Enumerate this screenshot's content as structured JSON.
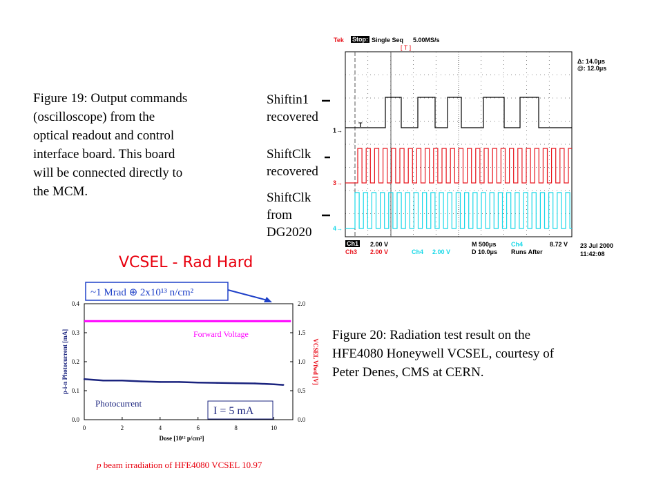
{
  "fig19": {
    "caption_lines": [
      "Figure 19: Output commands",
      "(oscilloscope) from the",
      "optical readout and control",
      "interface board. This board",
      "will be  connected directly to",
      "the MCM."
    ]
  },
  "signals": {
    "shiftin1": [
      "Shiftin1",
      "recovered"
    ],
    "shiftclk_rec": [
      "ShiftClk",
      "recovered"
    ],
    "shiftclk_dg": [
      "ShiftClk",
      "from",
      "DG2020"
    ]
  },
  "scope": {
    "brand": "Tek",
    "status": "Stop:",
    "mode": "Single Seq",
    "rate": "5.00MS/s",
    "delta": "Δ: 14.0μs",
    "at": "@: 12.0μs",
    "ch1": "Ch1",
    "ch1_scale": "2.00 V",
    "ch3": "Ch3",
    "ch3_scale": "2.00 V",
    "ch4": "Ch4",
    "ch4_scale": "2.00 V",
    "timebase": "M  500μs",
    "trig_ch": "Ch4",
    "trig_level": "8.72 V",
    "delay": "D  10.0μs",
    "runs": "Runs After",
    "date": "23 Jul 2000",
    "time": "11:42:08",
    "marker1": "1→",
    "marker3": "3→",
    "marker4": "4→",
    "trigger_marker": "T",
    "bracket": "[   T                              ]",
    "colors": {
      "ch1": "#000000",
      "ch3": "#e8141c",
      "ch4": "#18d8e8"
    }
  },
  "vcsel": {
    "title": "VCSEL - Rad Hard",
    "box_label": "~1 Mrad ⊕ 2x10¹³ n/cm²",
    "forward_voltage": "Forward Voltage",
    "photocurrent": "Photocurrent",
    "current": "I = 5 mA",
    "caption": "p beam irradiation of HFE4080 VCSEL 10.97",
    "caption_p": "p",
    "caption_rest": " beam irradiation of HFE4080 VCSEL 10.97",
    "left_ylabel": "p-i-n Photocurrent [mA]",
    "right_ylabel": "VCSEL Vfwd [V]",
    "xlabel": "Dose [10¹² p/cm²]",
    "colors": {
      "forward": "#ff00ff",
      "photo": "#1a237e",
      "title": "#e8000e",
      "box": "#1e40c8"
    }
  },
  "chart_data": {
    "type": "line",
    "x": [
      0,
      1,
      2,
      3,
      4,
      5,
      6,
      7,
      8,
      9,
      10,
      10.5
    ],
    "series": [
      {
        "name": "Forward Voltage",
        "axis": "right",
        "values": [
          1.7,
          1.7,
          1.7,
          1.7,
          1.7,
          1.7,
          1.7,
          1.7,
          1.7,
          1.7,
          1.7,
          1.7
        ]
      },
      {
        "name": "Photocurrent",
        "axis": "left",
        "values": [
          0.14,
          0.135,
          0.135,
          0.132,
          0.13,
          0.13,
          0.128,
          0.127,
          0.126,
          0.125,
          0.122,
          0.12
        ]
      }
    ],
    "title": "VCSEL - Rad Hard",
    "xlabel": "Dose [10¹² p/cm²]",
    "ylabel": "p-i-n Photocurrent [mA]",
    "y2label": "VCSEL Vfwd [V]",
    "xlim": [
      0,
      11
    ],
    "ylim": [
      0,
      0.4
    ],
    "y2lim": [
      0,
      2.0
    ],
    "xticks": [
      0,
      2,
      4,
      6,
      8,
      10
    ],
    "yticks": [
      0.0,
      0.1,
      0.2,
      0.3,
      0.4
    ],
    "y2ticks": [
      0.0,
      0.5,
      1.0,
      1.5,
      2.0
    ]
  },
  "fig20": {
    "caption_lines": [
      "Figure 20: Radiation test result on the",
      "HFE4080 Honeywell VCSEL, courtesy of",
      "Peter Denes, CMS at CERN."
    ]
  }
}
